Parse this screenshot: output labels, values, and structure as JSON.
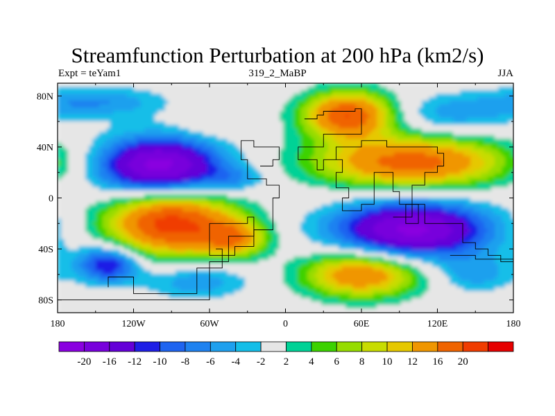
{
  "title": "Streamfunction Perturbation at 200 hPa (km2/s)",
  "subtitle_left": "Expt = teYam1",
  "subtitle_center": "319_2_MaBP",
  "subtitle_right": "JJA",
  "lat_labels": [
    "80N",
    "40N",
    "0",
    "40S",
    "80S"
  ],
  "lon_labels": [
    "180",
    "120W",
    "60W",
    "0",
    "60E",
    "120E",
    "180"
  ],
  "colorbar": {
    "colors": [
      "#8a00e0",
      "#7800dc",
      "#6400d8",
      "#1e1ee6",
      "#1e64f0",
      "#1e82f0",
      "#1ea0ee",
      "#14bee8",
      "#e6e6e6",
      "#00d296",
      "#3cd200",
      "#96dc00",
      "#c8dc00",
      "#e6c800",
      "#f09600",
      "#f06400",
      "#f03c00",
      "#e60000"
    ],
    "labels": [
      "-20",
      "-16",
      "-12",
      "-10",
      "-8",
      "-6",
      "-4",
      "-2",
      "2",
      "4",
      "6",
      "8",
      "10",
      "12",
      "16",
      "20"
    ]
  },
  "map_data": {
    "lon_range": [
      -180,
      180
    ],
    "lat_range": [
      -90,
      90
    ],
    "features": [
      {
        "name": "low-pacific-north",
        "lon": -100,
        "lat": 25,
        "rx": 48,
        "ry": 22,
        "amp": -22
      },
      {
        "name": "high-pacific-south",
        "lon": -90,
        "lat": -20,
        "rx": 50,
        "ry": 25,
        "amp": 22
      },
      {
        "name": "low-indian-south",
        "lon": 100,
        "lat": -25,
        "rx": 60,
        "ry": 22,
        "amp": -21
      },
      {
        "name": "high-asia",
        "lon": 100,
        "lat": 28,
        "rx": 75,
        "ry": 20,
        "amp": 18
      },
      {
        "name": "high-north-europe",
        "lon": 50,
        "lat": 65,
        "rx": 35,
        "ry": 18,
        "amp": 20
      },
      {
        "name": "high-south-atlantic",
        "lon": 60,
        "lat": -60,
        "rx": 45,
        "ry": 18,
        "amp": 16
      },
      {
        "name": "low-south-pacific",
        "lon": -140,
        "lat": -52,
        "rx": 25,
        "ry": 14,
        "amp": -13
      },
      {
        "name": "high-andes",
        "lon": -40,
        "lat": -32,
        "rx": 25,
        "ry": 14,
        "amp": 12
      },
      {
        "name": "high-atlantic-north",
        "lon": -60,
        "lat": 60,
        "rx": 28,
        "ry": 14,
        "amp": 2
      },
      {
        "name": "low-north-pacific",
        "lon": -150,
        "lat": 75,
        "rx": 55,
        "ry": 12,
        "amp": -6
      },
      {
        "name": "low-north-asia",
        "lon": 130,
        "lat": 65,
        "rx": 50,
        "ry": 16,
        "amp": -5
      },
      {
        "name": "low-south-america",
        "lon": -70,
        "lat": -65,
        "rx": 40,
        "ry": 14,
        "amp": -6
      },
      {
        "name": "low-tropics-west",
        "lon": -40,
        "lat": 15,
        "rx": 25,
        "ry": 10,
        "amp": -5
      },
      {
        "name": "low-south-ocean-east",
        "lon": 150,
        "lat": -60,
        "rx": 30,
        "ry": 14,
        "amp": -5
      }
    ],
    "coastlines": [
      [
        [
          15,
          62
        ],
        [
          25,
          65
        ],
        [
          30,
          68
        ],
        [
          55,
          70
        ],
        [
          60,
          62
        ],
        [
          60,
          50
        ],
        [
          30,
          40
        ],
        [
          10,
          38
        ],
        [
          10,
          30
        ],
        [
          25,
          22
        ],
        [
          30,
          30
        ],
        [
          45,
          20
        ],
        [
          40,
          8
        ],
        [
          50,
          0
        ],
        [
          45,
          -10
        ],
        [
          60,
          -5
        ],
        [
          70,
          20
        ],
        [
          85,
          5
        ],
        [
          90,
          -5
        ],
        [
          100,
          10
        ],
        [
          110,
          20
        ],
        [
          120,
          25
        ],
        [
          125,
          35
        ],
        [
          120,
          40
        ],
        [
          100,
          40
        ],
        [
          80,
          45
        ],
        [
          60,
          40
        ],
        [
          40,
          30
        ]
      ],
      [
        [
          -20,
          25
        ],
        [
          -10,
          30
        ],
        [
          -5,
          40
        ],
        [
          -25,
          45
        ],
        [
          -35,
          30
        ],
        [
          -30,
          15
        ],
        [
          -15,
          10
        ],
        [
          -5,
          0
        ],
        [
          -10,
          -25
        ],
        [
          -25,
          -30
        ],
        [
          -45,
          -50
        ],
        [
          -60,
          -80
        ],
        [
          -100,
          -80
        ],
        [
          -180,
          -80
        ]
      ],
      [
        [
          -55,
          -40
        ],
        [
          -50,
          -55
        ],
        [
          -65,
          -55
        ],
        [
          -70,
          -75
        ],
        [
          -100,
          -75
        ],
        [
          -120,
          -62
        ],
        [
          -140,
          -70
        ]
      ],
      [
        [
          -60,
          -20
        ],
        [
          -30,
          -15
        ],
        [
          -25,
          -38
        ],
        [
          -40,
          -45
        ],
        [
          -60,
          -38
        ],
        [
          -60,
          -20
        ]
      ],
      [
        [
          85,
          -15
        ],
        [
          100,
          -5
        ],
        [
          110,
          -20
        ],
        [
          130,
          -20
        ],
        [
          140,
          -35
        ],
        [
          150,
          -40
        ],
        [
          160,
          -45
        ],
        [
          170,
          -50
        ],
        [
          180,
          -65
        ]
      ],
      [
        [
          95,
          -5
        ],
        [
          105,
          -10
        ],
        [
          105,
          -20
        ],
        [
          95,
          -20
        ],
        [
          95,
          -5
        ]
      ],
      [
        [
          130,
          -45
        ],
        [
          150,
          -48
        ],
        [
          180,
          -45
        ]
      ]
    ]
  }
}
